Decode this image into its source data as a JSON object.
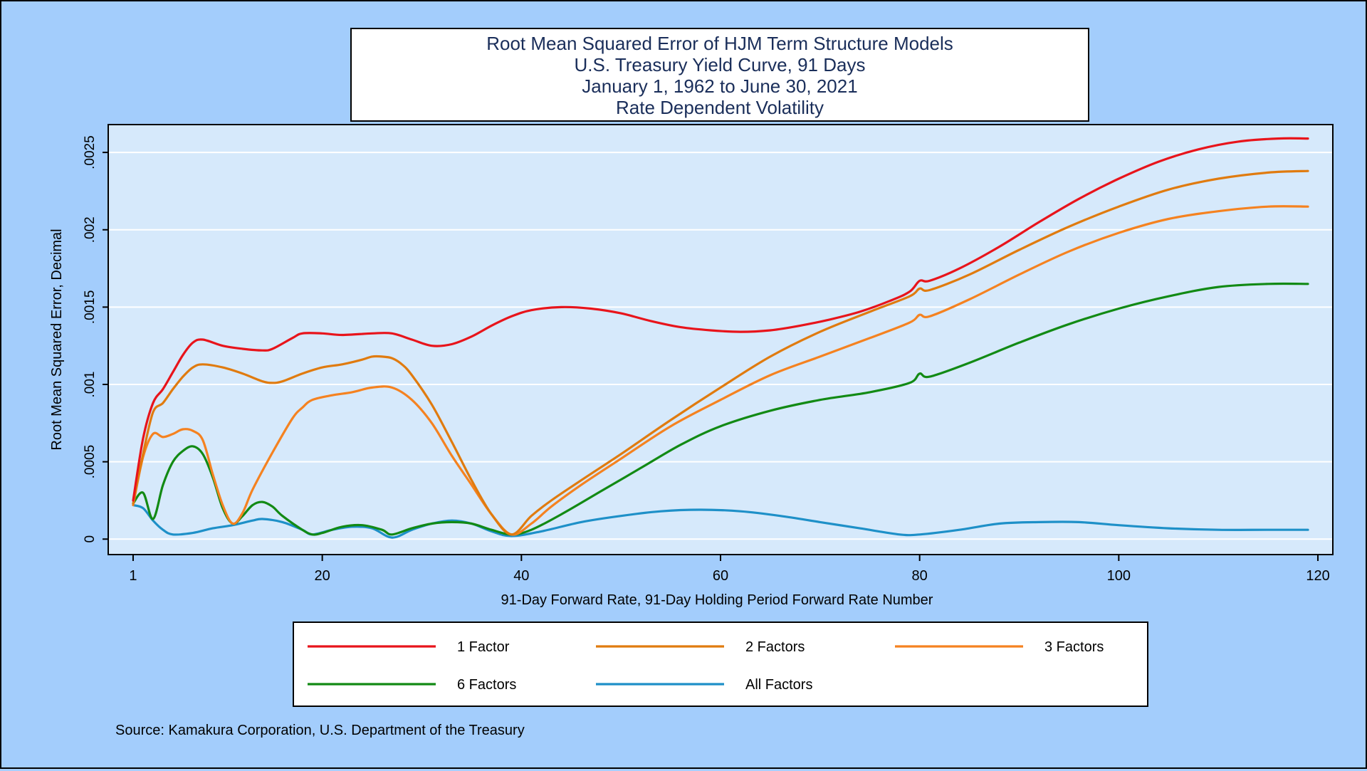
{
  "chart_data": {
    "type": "line",
    "title_lines": [
      "Root Mean Squared Error of HJM Term Structure Models",
      "U.S. Treasury Yield Curve, 91 Days",
      "January 1, 1962 to June 30, 2021",
      "Rate Dependent Volatility"
    ],
    "xlabel": "91-Day Forward Rate, 91-Day Holding Period Forward Rate Number",
    "ylabel": "Root Mean Squared Error, Decimal",
    "xlim": [
      -1.5,
      121.5
    ],
    "ylim": [
      -0.0001,
      0.00268
    ],
    "x_ticks": [
      1,
      20,
      40,
      60,
      80,
      100,
      120
    ],
    "x_tick_labels": [
      "1",
      "20",
      "40",
      "60",
      "80",
      "100",
      "120"
    ],
    "y_ticks": [
      0,
      0.0005,
      0.001,
      0.0015,
      0.002,
      0.0025
    ],
    "y_tick_labels": [
      "0",
      ".0005",
      ".001",
      ".0015",
      ".002",
      ".0025"
    ],
    "grid": true,
    "legend_position": "bottom",
    "source": "Source: Kamakura Corporation, U.S. Department of the Treasury",
    "colors": {
      "background": "#a3cdfc",
      "plot_background": "#d6e9fb",
      "grid": "#ffffff"
    },
    "series": [
      {
        "name": "1 Factor",
        "color": "#e8141b",
        "points": [
          [
            1,
            0.00025
          ],
          [
            2,
            0.00065
          ],
          [
            3,
            0.00088
          ],
          [
            4,
            0.00097
          ],
          [
            5,
            0.00108
          ],
          [
            6,
            0.00119
          ],
          [
            7,
            0.00127
          ],
          [
            8,
            0.00129
          ],
          [
            10,
            0.00125
          ],
          [
            12,
            0.00123
          ],
          [
            14,
            0.00122
          ],
          [
            15,
            0.00123
          ],
          [
            17,
            0.0013
          ],
          [
            18,
            0.00133
          ],
          [
            20,
            0.00133
          ],
          [
            22,
            0.00132
          ],
          [
            25,
            0.00133
          ],
          [
            27,
            0.00133
          ],
          [
            29,
            0.00129
          ],
          [
            31,
            0.00125
          ],
          [
            33,
            0.00126
          ],
          [
            35,
            0.00131
          ],
          [
            37,
            0.00138
          ],
          [
            39,
            0.00144
          ],
          [
            41,
            0.00148
          ],
          [
            44,
            0.0015
          ],
          [
            47,
            0.00149
          ],
          [
            50,
            0.00146
          ],
          [
            53,
            0.00141
          ],
          [
            56,
            0.00137
          ],
          [
            59,
            0.00135
          ],
          [
            62,
            0.00134
          ],
          [
            65,
            0.00135
          ],
          [
            68,
            0.00138
          ],
          [
            71,
            0.00142
          ],
          [
            74,
            0.00147
          ],
          [
            77,
            0.00154
          ],
          [
            79,
            0.0016
          ],
          [
            80,
            0.00167
          ],
          [
            81,
            0.00167
          ],
          [
            84,
            0.00175
          ],
          [
            88,
            0.00189
          ],
          [
            92,
            0.00205
          ],
          [
            96,
            0.0022
          ],
          [
            100,
            0.00233
          ],
          [
            104,
            0.00244
          ],
          [
            108,
            0.00252
          ],
          [
            112,
            0.00257
          ],
          [
            116,
            0.00259
          ],
          [
            119,
            0.00259
          ]
        ]
      },
      {
        "name": "2 Factors",
        "color": "#e07b0f",
        "points": [
          [
            1,
            0.00023
          ],
          [
            2,
            0.00055
          ],
          [
            3,
            0.00082
          ],
          [
            4,
            0.00088
          ],
          [
            5,
            0.00097
          ],
          [
            6,
            0.00105
          ],
          [
            7,
            0.00111
          ],
          [
            8,
            0.00113
          ],
          [
            10,
            0.00111
          ],
          [
            12,
            0.00107
          ],
          [
            14,
            0.00102
          ],
          [
            15,
            0.00101
          ],
          [
            16,
            0.00102
          ],
          [
            18,
            0.00107
          ],
          [
            20,
            0.00111
          ],
          [
            22,
            0.00113
          ],
          [
            24,
            0.00116
          ],
          [
            25,
            0.00118
          ],
          [
            26,
            0.00118
          ],
          [
            27,
            0.00117
          ],
          [
            28,
            0.00113
          ],
          [
            29,
            0.00106
          ],
          [
            31,
            0.00087
          ],
          [
            33,
            0.00063
          ],
          [
            35,
            0.00038
          ],
          [
            37,
            0.00016
          ],
          [
            39,
            3e-05
          ],
          [
            41,
            0.00015
          ],
          [
            43,
            0.00025
          ],
          [
            46,
            0.00038
          ],
          [
            50,
            0.00055
          ],
          [
            55,
            0.00077
          ],
          [
            60,
            0.00098
          ],
          [
            65,
            0.00118
          ],
          [
            70,
            0.00134
          ],
          [
            75,
            0.00147
          ],
          [
            79,
            0.00157
          ],
          [
            80,
            0.00162
          ],
          [
            81,
            0.00161
          ],
          [
            85,
            0.00171
          ],
          [
            90,
            0.00187
          ],
          [
            95,
            0.00202
          ],
          [
            100,
            0.00215
          ],
          [
            105,
            0.00226
          ],
          [
            110,
            0.00233
          ],
          [
            115,
            0.00237
          ],
          [
            119,
            0.00238
          ]
        ]
      },
      {
        "name": "3 Factors",
        "color": "#f58220",
        "points": [
          [
            1,
            0.00022
          ],
          [
            2,
            0.00053
          ],
          [
            3,
            0.00068
          ],
          [
            4,
            0.00066
          ],
          [
            5,
            0.00068
          ],
          [
            6,
            0.00071
          ],
          [
            7,
            0.0007
          ],
          [
            8,
            0.00064
          ],
          [
            9,
            0.00042
          ],
          [
            10,
            0.00022
          ],
          [
            11,
            0.0001
          ],
          [
            12,
            0.00017
          ],
          [
            13,
            0.00032
          ],
          [
            15,
            0.00056
          ],
          [
            17,
            0.00078
          ],
          [
            18,
            0.00085
          ],
          [
            19,
            0.0009
          ],
          [
            21,
            0.00093
          ],
          [
            23,
            0.00095
          ],
          [
            25,
            0.00098
          ],
          [
            27,
            0.00098
          ],
          [
            29,
            0.0009
          ],
          [
            31,
            0.00075
          ],
          [
            33,
            0.00054
          ],
          [
            35,
            0.00035
          ],
          [
            37,
            0.00016
          ],
          [
            39,
            3e-05
          ],
          [
            41,
            0.0001
          ],
          [
            43,
            0.00021
          ],
          [
            46,
            0.00035
          ],
          [
            50,
            0.00052
          ],
          [
            55,
            0.00073
          ],
          [
            60,
            0.0009
          ],
          [
            65,
            0.00106
          ],
          [
            70,
            0.00118
          ],
          [
            75,
            0.0013
          ],
          [
            79,
            0.0014
          ],
          [
            80,
            0.00145
          ],
          [
            81,
            0.00144
          ],
          [
            85,
            0.00155
          ],
          [
            90,
            0.00171
          ],
          [
            95,
            0.00186
          ],
          [
            100,
            0.00198
          ],
          [
            105,
            0.00207
          ],
          [
            110,
            0.00212
          ],
          [
            115,
            0.00215
          ],
          [
            119,
            0.00215
          ]
        ]
      },
      {
        "name": "6 Factors",
        "color": "#128a14",
        "points": [
          [
            1,
            0.00023
          ],
          [
            2,
            0.0003
          ],
          [
            3,
            0.00013
          ],
          [
            4,
            0.00035
          ],
          [
            5,
            0.0005
          ],
          [
            6,
            0.00057
          ],
          [
            7,
            0.0006
          ],
          [
            8,
            0.00055
          ],
          [
            9,
            0.0004
          ],
          [
            10,
            0.0002
          ],
          [
            11,
            0.0001
          ],
          [
            12,
            0.00015
          ],
          [
            13,
            0.00022
          ],
          [
            14,
            0.00024
          ],
          [
            15,
            0.00021
          ],
          [
            16,
            0.00015
          ],
          [
            18,
            6e-05
          ],
          [
            19,
            3e-05
          ],
          [
            20,
            4e-05
          ],
          [
            22,
            8e-05
          ],
          [
            24,
            9e-05
          ],
          [
            26,
            6e-05
          ],
          [
            27,
            3e-05
          ],
          [
            29,
            7e-05
          ],
          [
            31,
            0.0001
          ],
          [
            33,
            0.00011
          ],
          [
            35,
            0.0001
          ],
          [
            37,
            6e-05
          ],
          [
            39,
            3e-05
          ],
          [
            41,
            6e-05
          ],
          [
            44,
            0.00016
          ],
          [
            48,
            0.00031
          ],
          [
            52,
            0.00046
          ],
          [
            56,
            0.00061
          ],
          [
            60,
            0.00073
          ],
          [
            65,
            0.00083
          ],
          [
            70,
            0.0009
          ],
          [
            75,
            0.00095
          ],
          [
            79,
            0.00101
          ],
          [
            80,
            0.00107
          ],
          [
            81,
            0.00105
          ],
          [
            85,
            0.00114
          ],
          [
            90,
            0.00127
          ],
          [
            95,
            0.00139
          ],
          [
            100,
            0.00149
          ],
          [
            105,
            0.00157
          ],
          [
            110,
            0.00163
          ],
          [
            115,
            0.00165
          ],
          [
            119,
            0.00165
          ]
        ]
      },
      {
        "name": "All Factors",
        "color": "#1e90c8",
        "points": [
          [
            1,
            0.00022
          ],
          [
            2,
            0.0002
          ],
          [
            3,
            0.00012
          ],
          [
            4,
            6e-05
          ],
          [
            5,
            3e-05
          ],
          [
            7,
            4e-05
          ],
          [
            9,
            7e-05
          ],
          [
            11,
            9e-05
          ],
          [
            13,
            0.00012
          ],
          [
            14,
            0.00013
          ],
          [
            16,
            0.00011
          ],
          [
            18,
            6e-05
          ],
          [
            19,
            3e-05
          ],
          [
            21,
            6e-05
          ],
          [
            23,
            8e-05
          ],
          [
            25,
            7e-05
          ],
          [
            27,
            1e-05
          ],
          [
            29,
            6e-05
          ],
          [
            31,
            0.0001
          ],
          [
            33,
            0.00012
          ],
          [
            35,
            0.0001
          ],
          [
            37,
            5e-05
          ],
          [
            39,
            2e-05
          ],
          [
            42,
            5e-05
          ],
          [
            46,
            0.00011
          ],
          [
            50,
            0.00015
          ],
          [
            54,
            0.00018
          ],
          [
            58,
            0.00019
          ],
          [
            62,
            0.00018
          ],
          [
            66,
            0.00015
          ],
          [
            70,
            0.00011
          ],
          [
            74,
            7e-05
          ],
          [
            78,
            3e-05
          ],
          [
            80,
            3e-05
          ],
          [
            84,
            6e-05
          ],
          [
            88,
            0.0001
          ],
          [
            92,
            0.00011
          ],
          [
            96,
            0.00011
          ],
          [
            100,
            9e-05
          ],
          [
            105,
            7e-05
          ],
          [
            110,
            6e-05
          ],
          [
            115,
            6e-05
          ],
          [
            119,
            6e-05
          ]
        ]
      }
    ]
  }
}
